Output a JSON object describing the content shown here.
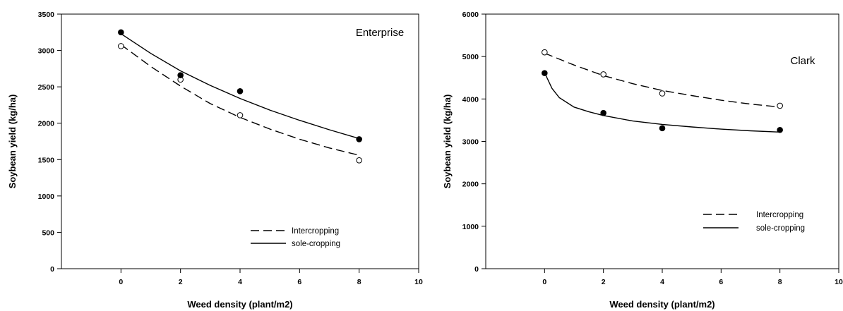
{
  "chart_data": [
    {
      "type": "scatter",
      "title": "",
      "annotation": "Enterprise",
      "xlabel": "Weed density (plant/m2)",
      "ylabel": "Soybean yield (kg/ha)",
      "xlim": [
        -2,
        10
      ],
      "ylim": [
        0,
        3500
      ],
      "xticks": [
        0,
        2,
        4,
        6,
        8,
        10
      ],
      "yticks": [
        0,
        500,
        1000,
        1500,
        2000,
        2500,
        3000,
        3500
      ],
      "grid": false,
      "legend_position": "bottom-right",
      "series": [
        {
          "name": "Intercropping",
          "marker": "open-circle",
          "line_style": "dashed",
          "x": [
            0,
            2,
            4,
            8
          ],
          "y": [
            3060,
            2600,
            2110,
            1490
          ],
          "fit": [
            [
              0,
              3080
            ],
            [
              1,
              2780
            ],
            [
              2,
              2510
            ],
            [
              3,
              2270
            ],
            [
              4,
              2080
            ],
            [
              5,
              1920
            ],
            [
              6,
              1780
            ],
            [
              7,
              1660
            ],
            [
              8,
              1560
            ]
          ]
        },
        {
          "name": "sole-cropping",
          "marker": "filled-circle",
          "line_style": "solid",
          "x": [
            0,
            2,
            4,
            8
          ],
          "y": [
            3250,
            2660,
            2440,
            1780
          ],
          "fit": [
            [
              0,
              3230
            ],
            [
              1,
              2960
            ],
            [
              2,
              2720
            ],
            [
              3,
              2520
            ],
            [
              4,
              2340
            ],
            [
              5,
              2180
            ],
            [
              6,
              2040
            ],
            [
              7,
              1910
            ],
            [
              8,
              1790
            ]
          ]
        }
      ]
    },
    {
      "type": "scatter",
      "title": "",
      "annotation": "Clark",
      "xlabel": "Weed density (plant/m2)",
      "ylabel": "Soybean yield (kg/ha)",
      "xlim": [
        -2,
        10
      ],
      "ylim": [
        0,
        6000
      ],
      "xticks": [
        0,
        2,
        4,
        6,
        8,
        10
      ],
      "yticks": [
        0,
        1000,
        2000,
        3000,
        4000,
        5000,
        6000
      ],
      "grid": false,
      "legend_position": "bottom-right",
      "series": [
        {
          "name": "Intercropping",
          "marker": "open-circle",
          "line_style": "dashed",
          "x": [
            0,
            2,
            4,
            8
          ],
          "y": [
            5100,
            4580,
            4130,
            3840
          ],
          "fit": [
            [
              0,
              5080
            ],
            [
              1,
              4800
            ],
            [
              2,
              4550
            ],
            [
              3,
              4360
            ],
            [
              4,
              4200
            ],
            [
              5,
              4080
            ],
            [
              6,
              3970
            ],
            [
              7,
              3880
            ],
            [
              8,
              3810
            ]
          ]
        },
        {
          "name": "sole-cropping",
          "marker": "filled-circle",
          "line_style": "solid",
          "x": [
            0,
            2,
            4,
            8
          ],
          "y": [
            4610,
            3670,
            3310,
            3270
          ],
          "fit": [
            [
              0,
              4620
            ],
            [
              0.25,
              4250
            ],
            [
              0.5,
              4030
            ],
            [
              1,
              3810
            ],
            [
              1.5,
              3700
            ],
            [
              2,
              3610
            ],
            [
              3,
              3480
            ],
            [
              4,
              3400
            ],
            [
              5,
              3340
            ],
            [
              6,
              3290
            ],
            [
              7,
              3250
            ],
            [
              8,
              3220
            ]
          ]
        }
      ]
    }
  ]
}
